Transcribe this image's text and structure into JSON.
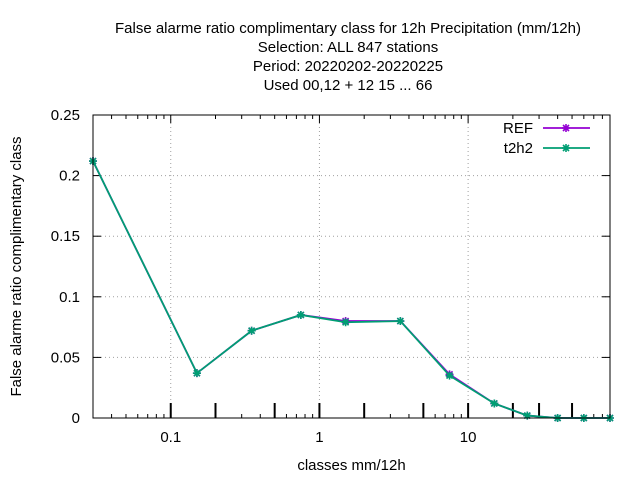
{
  "chart_data": {
    "type": "line",
    "title_lines": [
      "False alarme ratio complimentary class  for 12h Precipitation (mm/12h)",
      "Selection: ALL    847 stations",
      "Period: 20220202-20220225",
      "Used  00,12  + 12 15 ... 66"
    ],
    "xlabel": "classes mm/12h",
    "ylabel": "False alarme ratio complimentary class",
    "x_scale": "log",
    "xlim": [
      0.03,
      90
    ],
    "ylim": [
      0,
      0.25
    ],
    "grid": true,
    "legend_position": "top-right",
    "x_ticks": [
      {
        "value": 0.1,
        "label": "0.1"
      },
      {
        "value": 1,
        "label": "1"
      },
      {
        "value": 10,
        "label": "10"
      }
    ],
    "y_ticks": [
      {
        "value": 0,
        "label": "0"
      },
      {
        "value": 0.05,
        "label": "0.05"
      },
      {
        "value": 0.1,
        "label": "0.1"
      },
      {
        "value": 0.15,
        "label": "0.15"
      },
      {
        "value": 0.2,
        "label": "0.2"
      },
      {
        "value": 0.25,
        "label": "0.25"
      }
    ],
    "class_marks": [
      0.1,
      0.2,
      0.5,
      1,
      2,
      5,
      10,
      20,
      30,
      50
    ],
    "series": [
      {
        "name": "REF",
        "color": "#9400d3",
        "x": [
          0.03,
          0.15,
          0.35,
          0.75,
          1.5,
          3.5,
          7.5,
          15,
          25,
          40,
          60,
          90
        ],
        "y": [
          0.212,
          0.037,
          0.072,
          0.085,
          0.08,
          0.08,
          0.036,
          0.012,
          0.002,
          0.0,
          0.0,
          0.0
        ]
      },
      {
        "name": "t2h2",
        "color": "#009e73",
        "x": [
          0.03,
          0.15,
          0.35,
          0.75,
          1.5,
          3.5,
          7.5,
          15,
          25,
          40,
          60,
          90
        ],
        "y": [
          0.212,
          0.037,
          0.072,
          0.085,
          0.079,
          0.08,
          0.035,
          0.012,
          0.002,
          0.0,
          0.0,
          0.0
        ]
      }
    ]
  }
}
